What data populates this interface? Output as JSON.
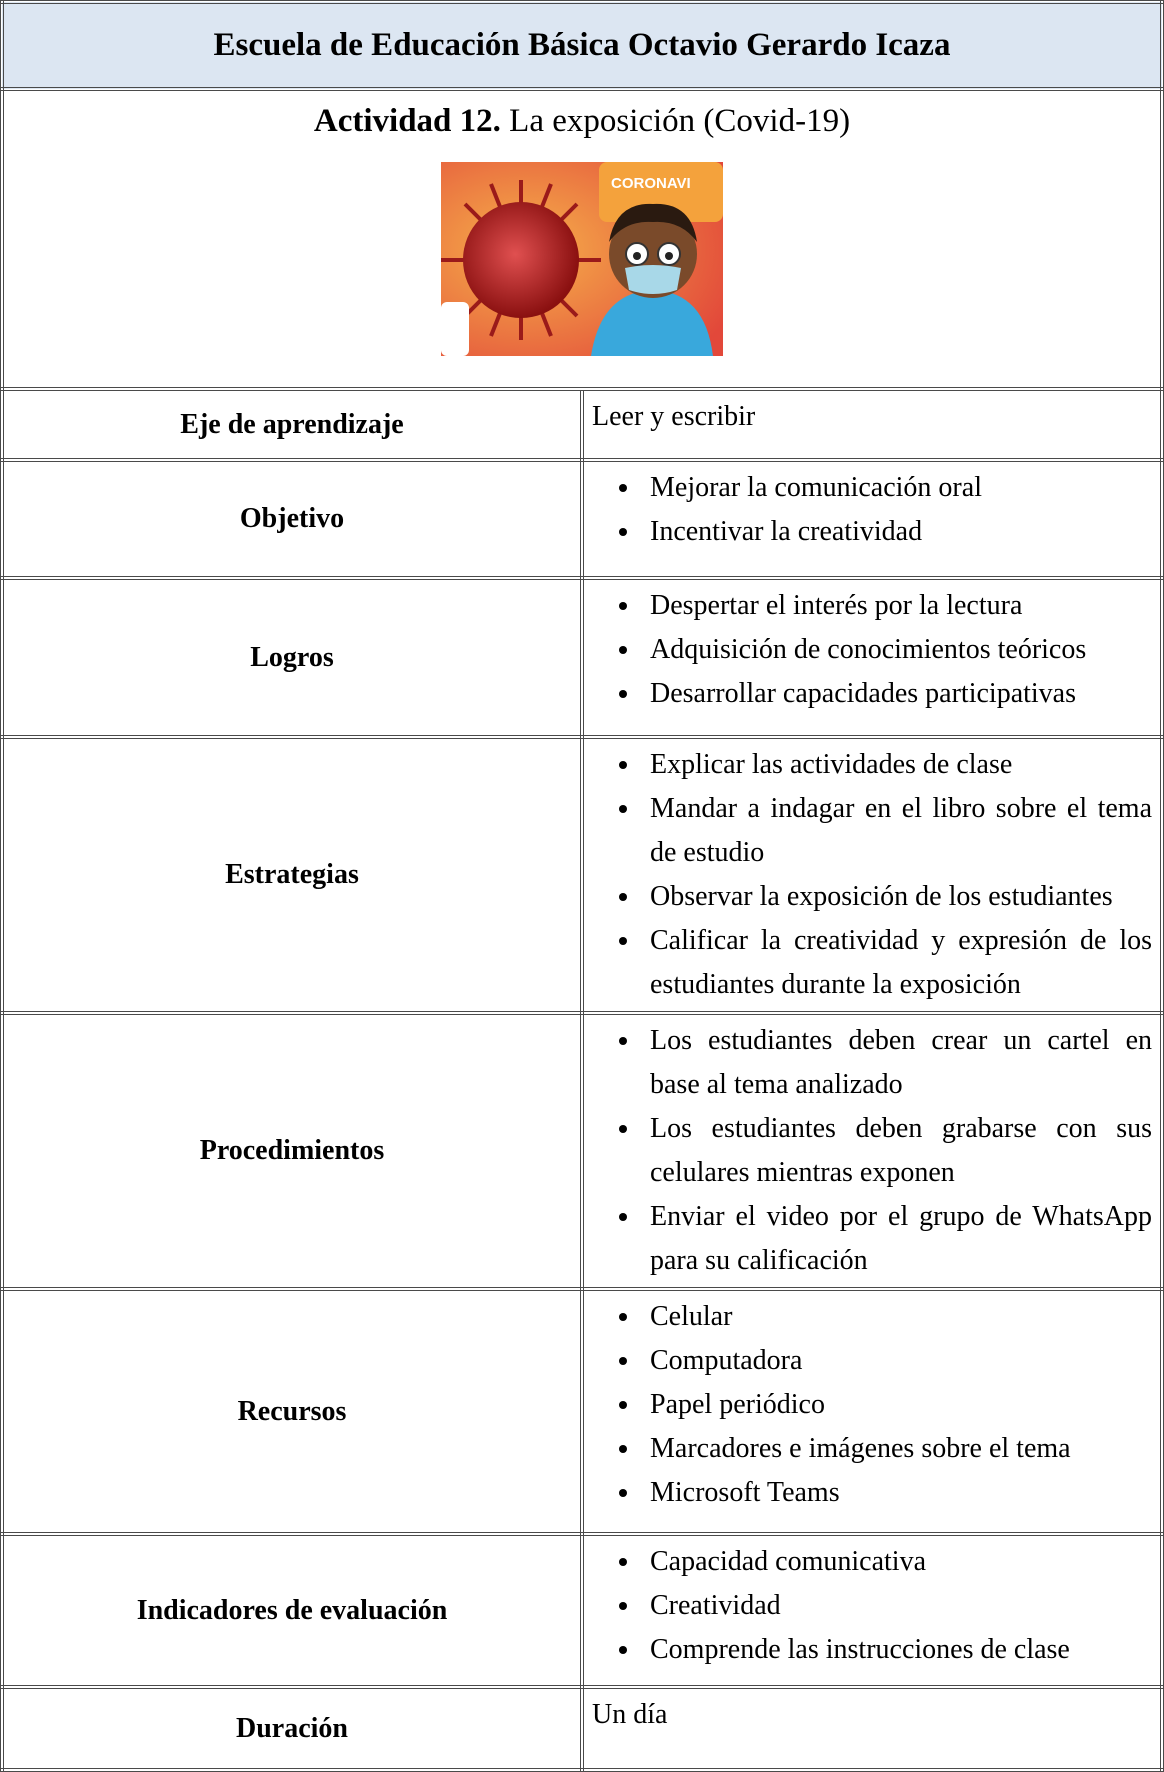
{
  "header": {
    "title": "Escuela de Educación Básica Octavio Gerardo Icaza"
  },
  "activity": {
    "label": "Actividad 12.",
    "title": "La exposición (Covid-19)",
    "image_text": "CORONAVI"
  },
  "table": {
    "rows": [
      {
        "label": "Eje de aprendizaje",
        "text": "Leer y escribir"
      },
      {
        "label": "Objetivo",
        "items": [
          "Mejorar la comunicación oral",
          "Incentivar la creatividad"
        ]
      },
      {
        "label": "Logros",
        "items": [
          "Despertar el interés por la lectura",
          "Adquisición de conocimientos teóricos",
          "Desarrollar capacidades participativas"
        ]
      },
      {
        "label": "Estrategias",
        "items": [
          "Explicar las actividades de clase",
          "Mandar a indagar en el libro sobre el tema de estudio",
          "Observar la exposición de los estudiantes",
          "Calificar la creatividad y expresión de los estudiantes durante la exposición"
        ]
      },
      {
        "label": "Procedimientos",
        "items": [
          "Los estudiantes deben crear un cartel en base al tema analizado",
          "Los estudiantes deben grabarse con sus celulares mientras exponen",
          "Enviar el video por el grupo de WhatsApp para su calificación"
        ]
      },
      {
        "label": "Recursos",
        "items": [
          "Celular",
          "Computadora",
          "Papel periódico",
          "Marcadores e imágenes sobre el tema",
          "Microsoft Teams"
        ]
      },
      {
        "label": "Indicadores de evaluación",
        "items": [
          "Capacidad comunicativa",
          "Creatividad",
          "Comprende las instrucciones de clase"
        ]
      },
      {
        "label": "Duración",
        "text": "Un día"
      }
    ]
  }
}
